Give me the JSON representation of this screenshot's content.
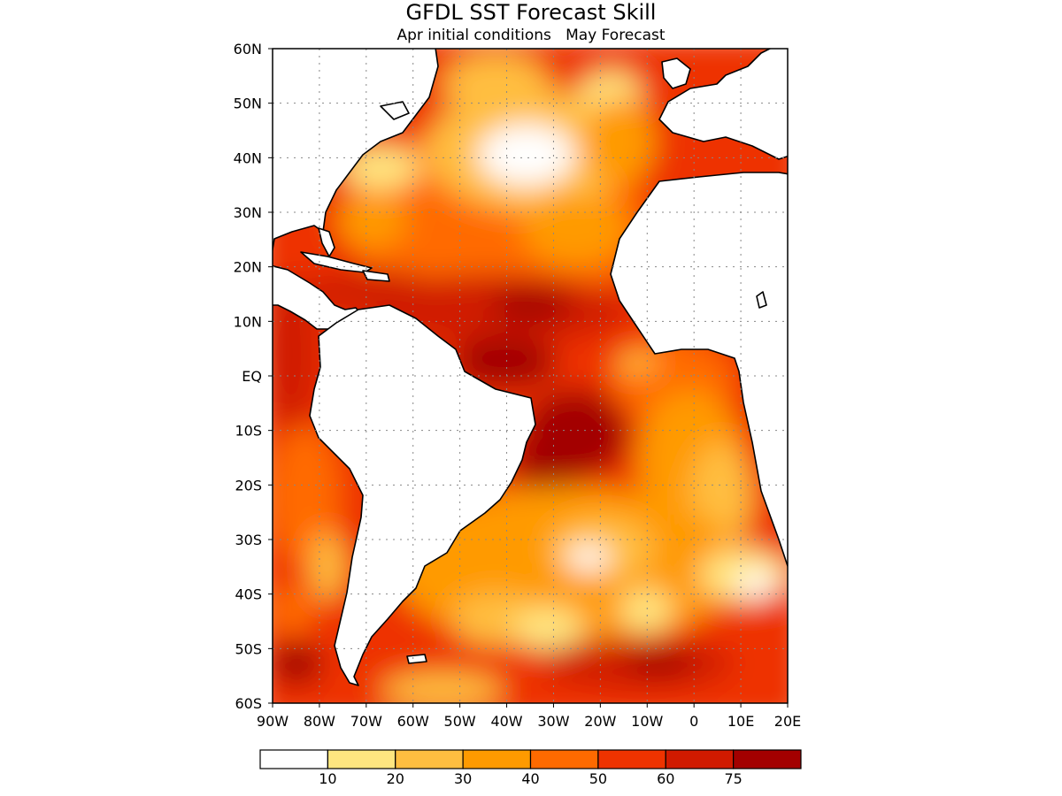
{
  "title": "GFDL SST Forecast Skill",
  "subtitle": "Apr initial conditions   May Forecast",
  "map": {
    "lon_range": [
      -90,
      20
    ],
    "lat_range": [
      -60,
      60
    ],
    "lat_labels": [
      "60N",
      "50N",
      "40N",
      "30N",
      "20N",
      "10N",
      "EQ",
      "10S",
      "20S",
      "30S",
      "40S",
      "50S",
      "60S"
    ],
    "lon_labels": [
      "90W",
      "80W",
      "70W",
      "60W",
      "50W",
      "40W",
      "30W",
      "20W",
      "10W",
      "0",
      "10E",
      "20E"
    ],
    "grid": "dotted",
    "land_color": "#ffffff",
    "coastline_color": "#000000"
  },
  "colorbar": {
    "colors": [
      "#ffffff",
      "#ffe680",
      "#ffbe40",
      "#ff9a00",
      "#ff6a00",
      "#ee3300",
      "#d01a00",
      "#a30000"
    ],
    "labels": [
      "10",
      "20",
      "30",
      "40",
      "50",
      "60",
      "75"
    ]
  }
}
